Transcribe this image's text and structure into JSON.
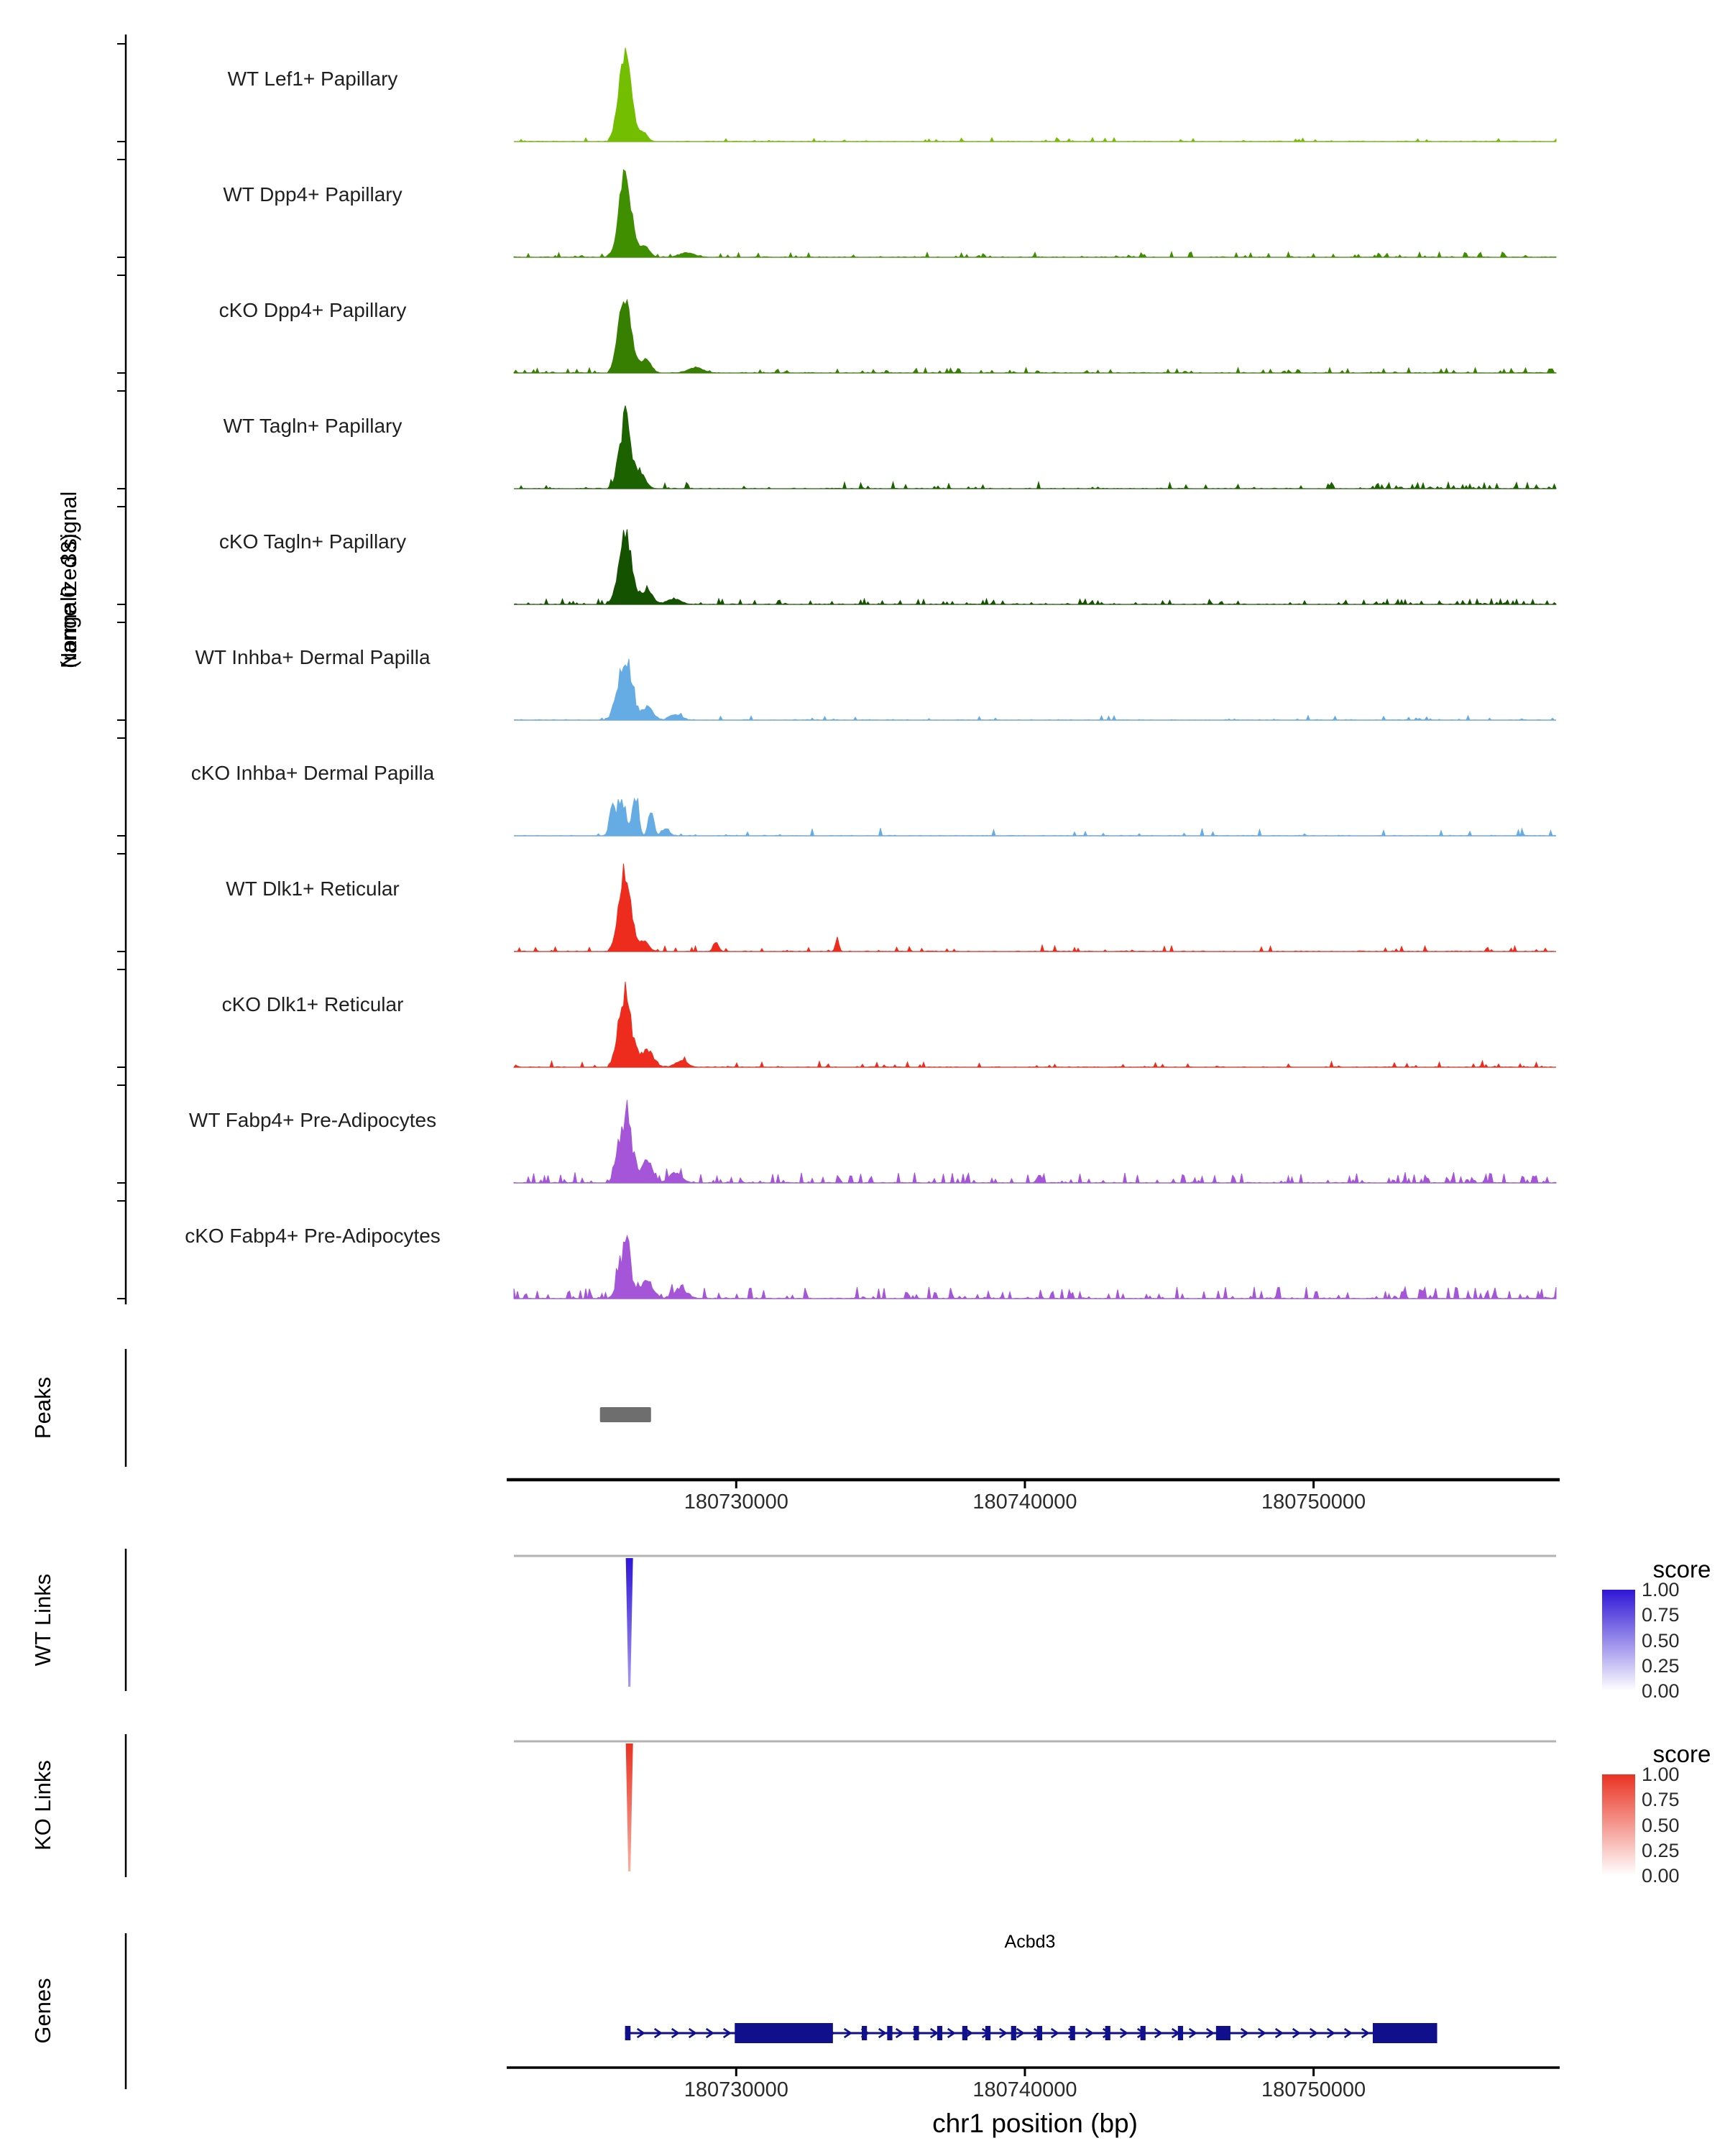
{
  "figure": {
    "y_label_line1": "Normalized signal",
    "y_label_line2": "(range 0 - 38)",
    "x_axis_label": "chr1 position (bp)",
    "sections": {
      "peaks": "Peaks",
      "wt_links": "WT Links",
      "ko_links": "KO Links",
      "genes": "Genes"
    }
  },
  "chart_data": {
    "type": "area",
    "description": "Genome browser coverage tracks at the Acbd3 locus with peaks, co-accessibility links and gene model",
    "x_range_bp": [
      180722300,
      180758400
    ],
    "x_ticks": [
      180730000,
      180740000,
      180750000
    ],
    "x_tick_labels": [
      "180730000",
      "180740000",
      "180750000"
    ],
    "signal_range": [
      0,
      38
    ],
    "tracks": [
      {
        "name": "WT Lef1+ Papillary",
        "color": "#74BE00",
        "seed": 11,
        "peak": {
          "center": 180726150,
          "height": 0.96,
          "sigma": 215
        },
        "rag": 0.15,
        "noise_density": 0.1,
        "noise_scale": 0.04,
        "tail": 1.0,
        "bumps": [
          {
            "c": 180726780,
            "h": 0.1,
            "s": 140
          }
        ]
      },
      {
        "name": "WT Dpp4+ Papillary",
        "color": "#3F8F00",
        "seed": 22,
        "peak": {
          "center": 180726150,
          "height": 0.95,
          "sigma": 210
        },
        "rag": 0.25,
        "noise_density": 0.16,
        "noise_scale": 0.055,
        "tail": 2.0,
        "bumps": [
          {
            "c": 180726820,
            "h": 0.13,
            "s": 170
          },
          {
            "c": 180728300,
            "h": 0.05,
            "s": 260
          }
        ]
      },
      {
        "name": "cKO Dpp4+ Papillary",
        "color": "#377F00",
        "seed": 33,
        "peak": {
          "center": 180726150,
          "height": 0.94,
          "sigma": 215
        },
        "rag": 0.27,
        "noise_density": 0.2,
        "noise_scale": 0.055,
        "tail": 1.6,
        "bumps": [
          {
            "c": 180726860,
            "h": 0.15,
            "s": 180
          },
          {
            "c": 180728600,
            "h": 0.06,
            "s": 260
          }
        ]
      },
      {
        "name": "WT Tagln+ Papillary",
        "color": "#1C6300",
        "seed": 44,
        "peak": {
          "center": 180726150,
          "height": 0.86,
          "sigma": 200
        },
        "rag": 0.35,
        "noise_density": 0.11,
        "noise_scale": 0.07,
        "tail": 4.0,
        "bumps": [
          {
            "c": 180726700,
            "h": 0.18,
            "s": 170
          }
        ]
      },
      {
        "name": "cKO Tagln+ Papillary",
        "color": "#145200",
        "seed": 55,
        "peak": {
          "center": 180726150,
          "height": 0.93,
          "sigma": 210
        },
        "rag": 0.3,
        "noise_density": 0.2,
        "noise_scale": 0.06,
        "tail": 2.2,
        "bumps": [
          {
            "c": 180726900,
            "h": 0.16,
            "s": 200
          },
          {
            "c": 180727850,
            "h": 0.06,
            "s": 240
          }
        ]
      },
      {
        "name": "WT Inhba+ Dermal Papilla",
        "color": "#66ACE4",
        "seed": 66,
        "peak": {
          "center": 180726150,
          "height": 0.88,
          "sigma": 230
        },
        "rag": 0.45,
        "noise_density": 0.1,
        "noise_scale": 0.05,
        "tail": 1.4,
        "bumps": [
          {
            "c": 180726950,
            "h": 0.16,
            "s": 180
          },
          {
            "c": 180727900,
            "h": 0.07,
            "s": 200
          }
        ]
      },
      {
        "name": "cKO Inhba+ Dermal Papilla",
        "color": "#66ACE4",
        "seed": 77,
        "peak": {
          "center": 180726050,
          "height": 0.62,
          "sigma": 160
        },
        "rag": 0.6,
        "noise_density": 0.08,
        "noise_scale": 0.08,
        "tail": 1.2,
        "bumps": [
          {
            "c": 180725700,
            "h": 0.45,
            "s": 90
          },
          {
            "c": 180726520,
            "h": 0.52,
            "s": 100
          },
          {
            "c": 180727050,
            "h": 0.3,
            "s": 90
          },
          {
            "c": 180727550,
            "h": 0.12,
            "s": 120
          }
        ]
      },
      {
        "name": "WT Dlk1+ Reticular",
        "color": "#EE2C1E",
        "seed": 88,
        "peak": {
          "center": 180726150,
          "height": 0.95,
          "sigma": 205
        },
        "rag": 0.25,
        "noise_density": 0.1,
        "noise_scale": 0.07,
        "tail": 1.5,
        "bumps": [
          {
            "c": 180726820,
            "h": 0.12,
            "s": 150
          },
          {
            "c": 180729300,
            "h": 0.1,
            "s": 90
          },
          {
            "c": 180733500,
            "h": 0.14,
            "s": 60
          }
        ]
      },
      {
        "name": "cKO Dlk1+ Reticular",
        "color": "#EE2C1E",
        "seed": 99,
        "peak": {
          "center": 180726150,
          "height": 0.9,
          "sigma": 215
        },
        "rag": 0.35,
        "noise_density": 0.12,
        "noise_scale": 0.07,
        "tail": 1.5,
        "bumps": [
          {
            "c": 180726900,
            "h": 0.2,
            "s": 220
          },
          {
            "c": 180728100,
            "h": 0.08,
            "s": 200
          }
        ]
      },
      {
        "name": "WT Fabp4+ Pre-Adipocytes",
        "color": "#A455D8",
        "seed": 110,
        "peak": {
          "center": 180726150,
          "height": 0.93,
          "sigma": 210
        },
        "rag": 0.45,
        "noise_density": 0.3,
        "noise_scale": 0.11,
        "tail": 1.3,
        "bumps": [
          {
            "c": 180726900,
            "h": 0.25,
            "s": 190
          },
          {
            "c": 180727900,
            "h": 0.12,
            "s": 220
          },
          {
            "c": 180740500,
            "h": 0.1,
            "s": 80
          }
        ]
      },
      {
        "name": "cKO Fabp4+ Pre-Adipocytes",
        "color": "#A455D8",
        "seed": 121,
        "peak": {
          "center": 180726150,
          "height": 0.78,
          "sigma": 200
        },
        "rag": 0.55,
        "noise_density": 0.34,
        "noise_scale": 0.12,
        "tail": 1.3,
        "bumps": [
          {
            "c": 180726900,
            "h": 0.22,
            "s": 200
          },
          {
            "c": 180728050,
            "h": 0.12,
            "s": 240
          }
        ]
      }
    ],
    "peaks_track": {
      "label": "Peaks",
      "color": "#6e6e6e",
      "regions": [
        {
          "start": 180725280,
          "end": 180727050
        }
      ]
    },
    "links": {
      "wt": {
        "label": "WT Links",
        "position": 180726300,
        "score": 1.0,
        "color_high": "#2F16D6"
      },
      "ko": {
        "label": "KO Links",
        "position": 180726300,
        "score": 1.0,
        "color_high": "#E93323"
      }
    },
    "legend": {
      "title": "score",
      "ticks": [
        "1.00",
        "0.75",
        "0.50",
        "0.25",
        "0.00"
      ]
    },
    "gene": {
      "name": "Acbd3",
      "strand": "+",
      "color": "#10108C",
      "start": 180726150,
      "end": 180754280,
      "exons": [
        [
          180726150,
          180726340
        ],
        [
          180729950,
          180733350
        ],
        [
          180734350,
          180734530
        ],
        [
          180735230,
          180735410
        ],
        [
          180736150,
          180736330
        ],
        [
          180736960,
          180737140
        ],
        [
          180737830,
          180738010
        ],
        [
          180738630,
          180738810
        ],
        [
          180739520,
          180739700
        ],
        [
          180740420,
          180740600
        ],
        [
          180741560,
          180741740
        ],
        [
          180742780,
          180742960
        ],
        [
          180744000,
          180744180
        ],
        [
          180745300,
          180745480
        ],
        [
          180746620,
          180747120
        ],
        [
          180752050,
          180754280
        ]
      ]
    }
  }
}
